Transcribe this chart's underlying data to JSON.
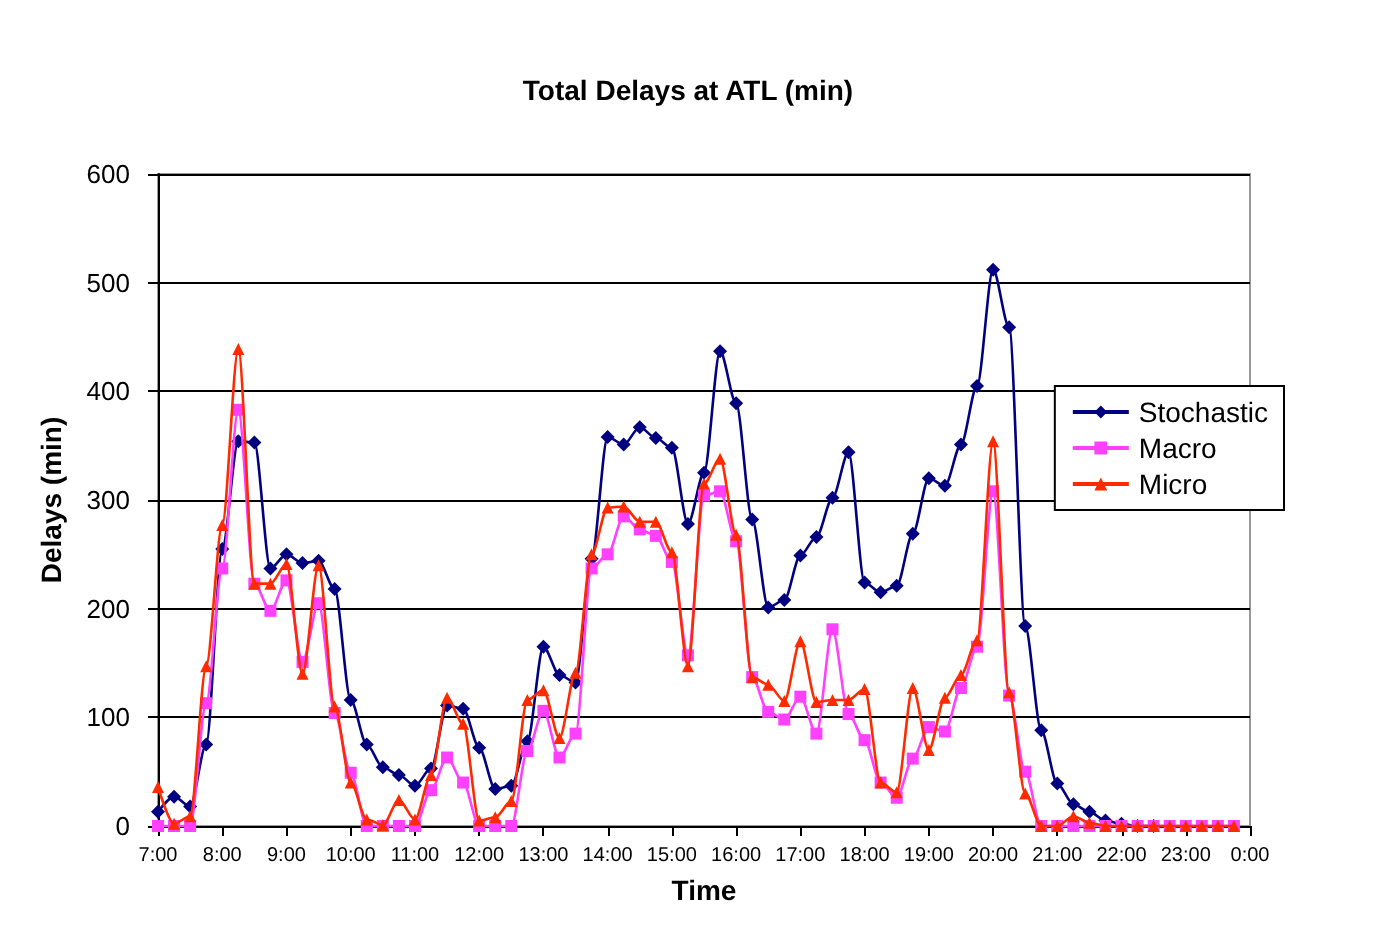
{
  "chart_data": {
    "type": "line",
    "title": "Total Delays at ATL (min)",
    "xlabel": "Time",
    "ylabel": "Delays (min)",
    "x": [
      7,
      7.25,
      7.5,
      7.75,
      8,
      8.25,
      8.5,
      8.75,
      9,
      9.25,
      9.5,
      9.75,
      10,
      10.25,
      10.5,
      10.75,
      11,
      11.25,
      11.5,
      11.75,
      12,
      12.25,
      12.5,
      12.75,
      13,
      13.25,
      13.5,
      13.75,
      14,
      14.25,
      14.5,
      14.75,
      15,
      15.25,
      15.5,
      15.75,
      16,
      16.25,
      16.5,
      16.75,
      17,
      17.25,
      17.5,
      17.75,
      18,
      18.25,
      18.5,
      18.75,
      19,
      19.25,
      19.5,
      19.75,
      20,
      20.25,
      20.5,
      20.75,
      21,
      21.25,
      21.5,
      21.75,
      22,
      22.25,
      22.5,
      22.75,
      23,
      23.25,
      23.5,
      23.75
    ],
    "series": [
      {
        "name": "Stochastic",
        "color": "#000080",
        "marker": "diamond",
        "values": [
          13,
          27,
          18,
          75,
          255,
          354,
          353,
          237,
          250,
          242,
          244,
          218,
          116,
          75,
          54,
          47,
          37,
          53,
          111,
          108,
          72,
          34,
          37,
          78,
          165,
          139,
          132,
          246,
          358,
          351,
          367,
          357,
          348,
          278,
          325,
          437,
          389,
          282,
          201,
          208,
          249,
          266,
          302,
          344,
          224,
          215,
          221,
          269,
          320,
          313,
          351,
          405,
          512,
          459,
          184,
          88,
          39,
          20,
          13,
          5,
          2,
          0,
          0,
          null,
          null,
          null,
          null,
          null
        ]
      },
      {
        "name": "Macro",
        "color": "#ff40ff",
        "marker": "square",
        "values": [
          0,
          0,
          0,
          113,
          237,
          383,
          223,
          198,
          226,
          151,
          205,
          104,
          49,
          0,
          0,
          0,
          0,
          33,
          63,
          40,
          0,
          0,
          0,
          69,
          106,
          63,
          85,
          237,
          250,
          285,
          273,
          267,
          243,
          157,
          304,
          308,
          262,
          137,
          105,
          98,
          119,
          85,
          181,
          103,
          79,
          40,
          26,
          62,
          91,
          87,
          127,
          165,
          308,
          120,
          50,
          0,
          0,
          0,
          0,
          0,
          0,
          0,
          0,
          0,
          0,
          0,
          0,
          0
        ]
      },
      {
        "name": "Micro",
        "color": "#ff2a00",
        "marker": "triangle",
        "values": [
          36,
          2,
          9,
          147,
          277,
          439,
          223,
          223,
          241,
          140,
          240,
          110,
          40,
          6,
          1,
          24,
          6,
          47,
          118,
          94,
          5,
          8,
          23,
          116,
          125,
          81,
          141,
          250,
          293,
          294,
          280,
          280,
          252,
          147,
          315,
          338,
          268,
          137,
          130,
          115,
          170,
          114,
          116,
          116,
          126,
          40,
          31,
          127,
          70,
          118,
          139,
          171,
          354,
          123,
          30,
          0,
          0,
          9,
          3,
          0,
          0,
          0,
          0,
          0,
          0,
          0,
          0,
          0
        ]
      }
    ],
    "xlim": [
      7,
      24
    ],
    "xticks": [
      {
        "value": 7,
        "label": "7:00"
      },
      {
        "value": 8,
        "label": "8:00"
      },
      {
        "value": 9,
        "label": "9:00"
      },
      {
        "value": 10,
        "label": "10:00"
      },
      {
        "value": 11,
        "label": "11:00"
      },
      {
        "value": 12,
        "label": "12:00"
      },
      {
        "value": 13,
        "label": "13:00"
      },
      {
        "value": 14,
        "label": "14:00"
      },
      {
        "value": 15,
        "label": "15:00"
      },
      {
        "value": 16,
        "label": "16:00"
      },
      {
        "value": 17,
        "label": "17:00"
      },
      {
        "value": 18,
        "label": "18:00"
      },
      {
        "value": 19,
        "label": "19:00"
      },
      {
        "value": 20,
        "label": "20:00"
      },
      {
        "value": 21,
        "label": "21:00"
      },
      {
        "value": 22,
        "label": "22:00"
      },
      {
        "value": 23,
        "label": "23:00"
      },
      {
        "value": 24,
        "label": "0:00"
      }
    ],
    "ylim": [
      0,
      600
    ],
    "yticks": [
      0,
      100,
      200,
      300,
      400,
      500,
      600
    ],
    "grid": "y",
    "legend": "right",
    "line_style": "solid"
  }
}
